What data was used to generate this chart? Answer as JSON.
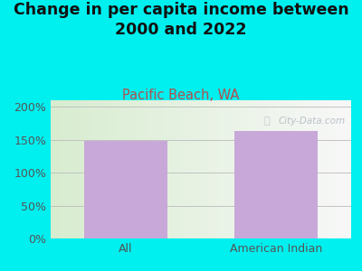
{
  "title": "Change in per capita income between\n2000 and 2022",
  "subtitle": "Pacific Beach, WA",
  "categories": [
    "All",
    "American Indian"
  ],
  "values": [
    148,
    163
  ],
  "bar_color": "#c8a8d8",
  "background_outer": "#00efef",
  "yticks": [
    0,
    50,
    100,
    150,
    200
  ],
  "ytick_labels": [
    "0%",
    "50%",
    "100%",
    "150%",
    "200%"
  ],
  "ylim": [
    0,
    210
  ],
  "title_fontsize": 12.5,
  "subtitle_fontsize": 10.5,
  "subtitle_color": "#b05050",
  "tick_color": "#555555",
  "watermark": "City-Data.com"
}
